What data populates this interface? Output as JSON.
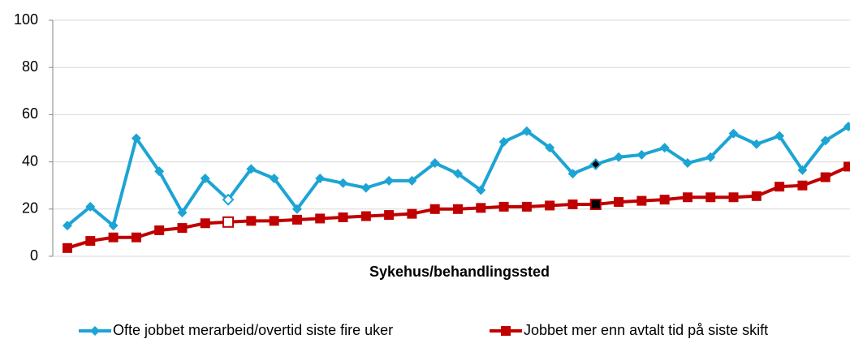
{
  "chart_data": {
    "type": "line",
    "x_label": "Sykehus/behandlingssted",
    "categories": [
      null,
      null,
      null,
      null,
      null,
      null,
      null,
      null,
      null,
      null,
      null,
      null,
      null,
      null,
      null,
      null,
      null,
      null,
      null,
      null,
      null,
      null,
      null,
      null,
      null,
      null,
      null,
      null,
      null,
      null,
      null,
      null,
      null,
      null,
      null
    ],
    "series": [
      {
        "name": "Ofte jobbet merarbeid/overtid siste fire uker",
        "color": "#1ca4d4",
        "marker": "diamond",
        "highlight": [
          {
            "index": 7,
            "fill": "#ffffff"
          },
          {
            "index": 23,
            "fill": "#000000"
          }
        ],
        "values": [
          13,
          21,
          13,
          50,
          36,
          18.5,
          33,
          24,
          37,
          33,
          20,
          33,
          31,
          29,
          32,
          32,
          39.5,
          35,
          28,
          48.5,
          53,
          46,
          35,
          39,
          42,
          43,
          46,
          39.5,
          42,
          52,
          47.5,
          51,
          36.5,
          49,
          55
        ]
      },
      {
        "name": "Jobbet mer enn avtalt tid på siste skift",
        "color": "#c00000",
        "marker": "square",
        "highlight": [
          {
            "index": 7,
            "fill": "#ffffff"
          },
          {
            "index": 23,
            "fill": "#000000"
          }
        ],
        "values": [
          3.5,
          6.5,
          8,
          8,
          11,
          12,
          14,
          14.5,
          15,
          15,
          15.5,
          16,
          16.5,
          17,
          17.5,
          18,
          20,
          20,
          20.5,
          21,
          21,
          21.5,
          22,
          22,
          23,
          23.5,
          24,
          25,
          25,
          25,
          25.5,
          29.5,
          30,
          33.5,
          38
        ]
      }
    ],
    "ylim": [
      0,
      100
    ],
    "yticks": [
      0,
      20,
      40,
      60,
      80,
      100
    ],
    "grid": true,
    "legend": "bottom"
  }
}
